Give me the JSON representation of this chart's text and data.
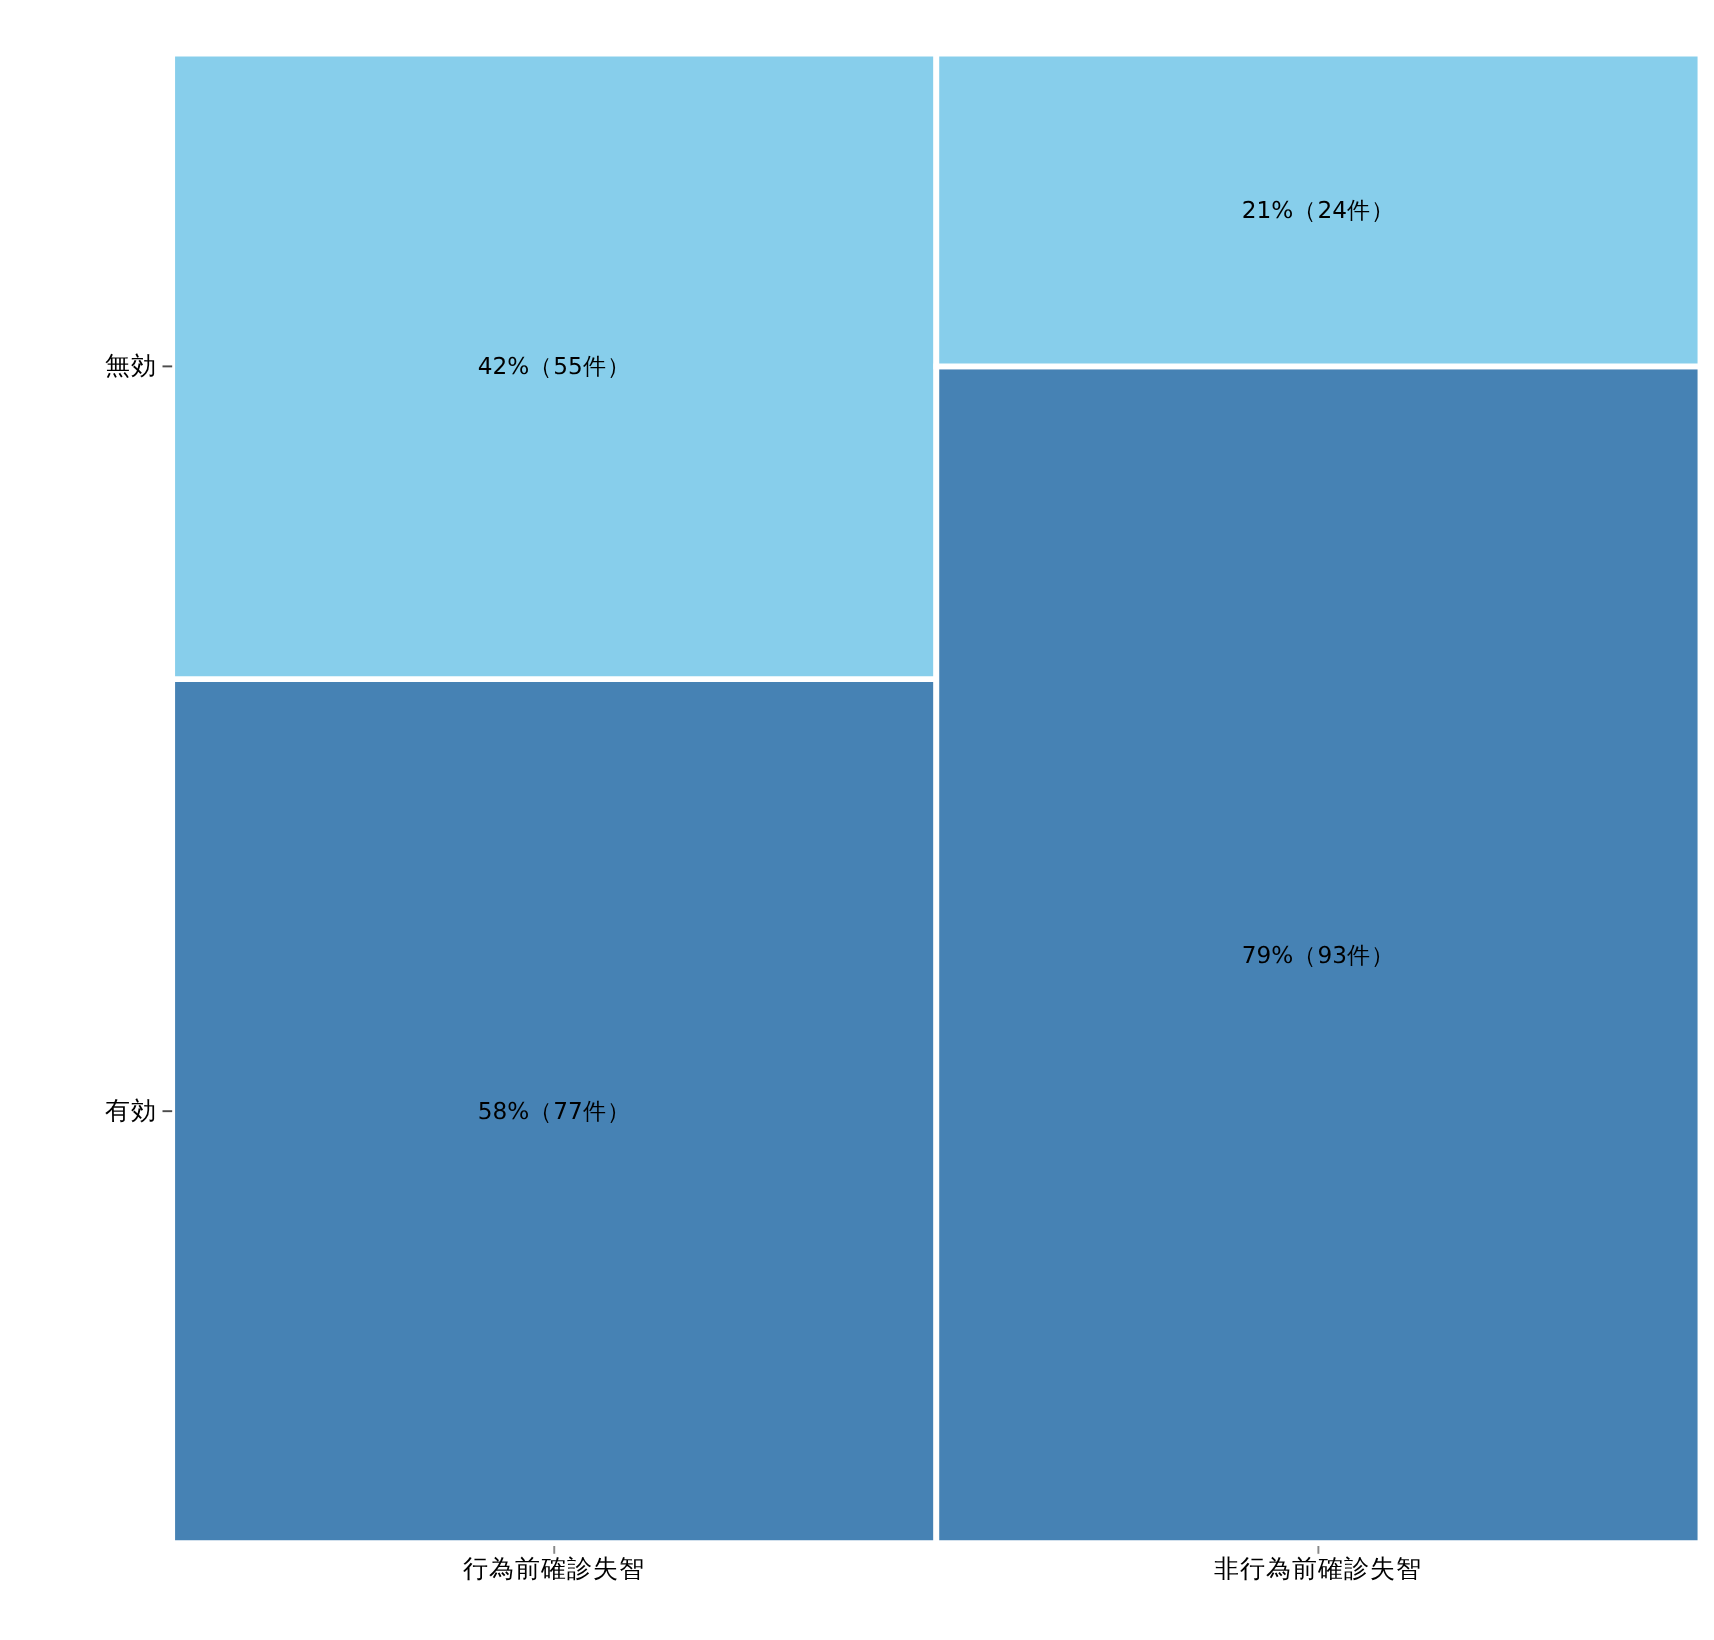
{
  "chart_data": {
    "type": "bar",
    "stacked": true,
    "legend": false,
    "categories": [
      "行為前確診失智",
      "非行為前確診失智"
    ],
    "series": [
      {
        "name": "有効",
        "color": "#4682b4",
        "values": [
          58,
          79
        ],
        "value_labels": [
          "58%（77件）",
          "79%（93件）"
        ]
      },
      {
        "name": "無効",
        "color": "#87ceeb",
        "values": [
          42,
          21
        ],
        "value_labels": [
          "42%（55件）",
          "21%（24件）"
        ]
      }
    ]
  }
}
